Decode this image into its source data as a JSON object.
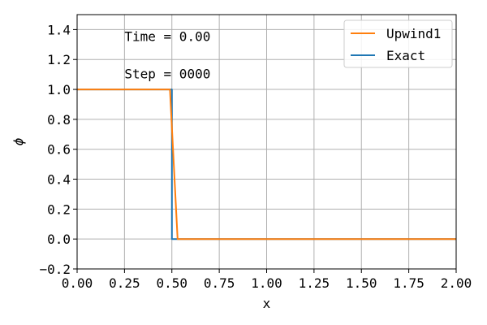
{
  "chart_data": {
    "type": "line",
    "xlabel": "x",
    "ylabel": "ϕ",
    "xlim": [
      0.0,
      2.0
    ],
    "ylim": [
      -0.2,
      1.5
    ],
    "grid": true,
    "legend_position": "top-right",
    "x_ticks": [
      "0.00",
      "0.25",
      "0.50",
      "0.75",
      "1.00",
      "1.25",
      "1.50",
      "1.75",
      "2.00"
    ],
    "x_tick_values": [
      0,
      0.25,
      0.5,
      0.75,
      1.0,
      1.25,
      1.5,
      1.75,
      2.0
    ],
    "y_ticks": [
      "−0.2",
      "0.0",
      "0.2",
      "0.4",
      "0.6",
      "0.8",
      "1.0",
      "1.2",
      "1.4"
    ],
    "y_tick_values": [
      -0.2,
      0.0,
      0.2,
      0.4,
      0.6,
      0.8,
      1.0,
      1.2,
      1.4
    ],
    "annotations": [
      "Time = 0.00",
      "Step = 0000"
    ],
    "series": [
      {
        "name": "Exact",
        "color": "#1f77b4",
        "x": [
          0.0,
          0.5,
          0.5,
          0.51,
          0.51,
          2.0
        ],
        "y": [
          1.0,
          1.0,
          0.0,
          0.0,
          0.0,
          0.0
        ]
      },
      {
        "name": "Upwind1",
        "color": "#ff7f0e",
        "x": [
          0.0,
          0.49,
          0.53,
          2.0
        ],
        "y": [
          1.0,
          1.0,
          0.0,
          0.0
        ]
      }
    ],
    "legend": [
      {
        "name": "Upwind1",
        "color": "#ff7f0e"
      },
      {
        "name": "Exact",
        "color": "#1f77b4"
      }
    ]
  }
}
